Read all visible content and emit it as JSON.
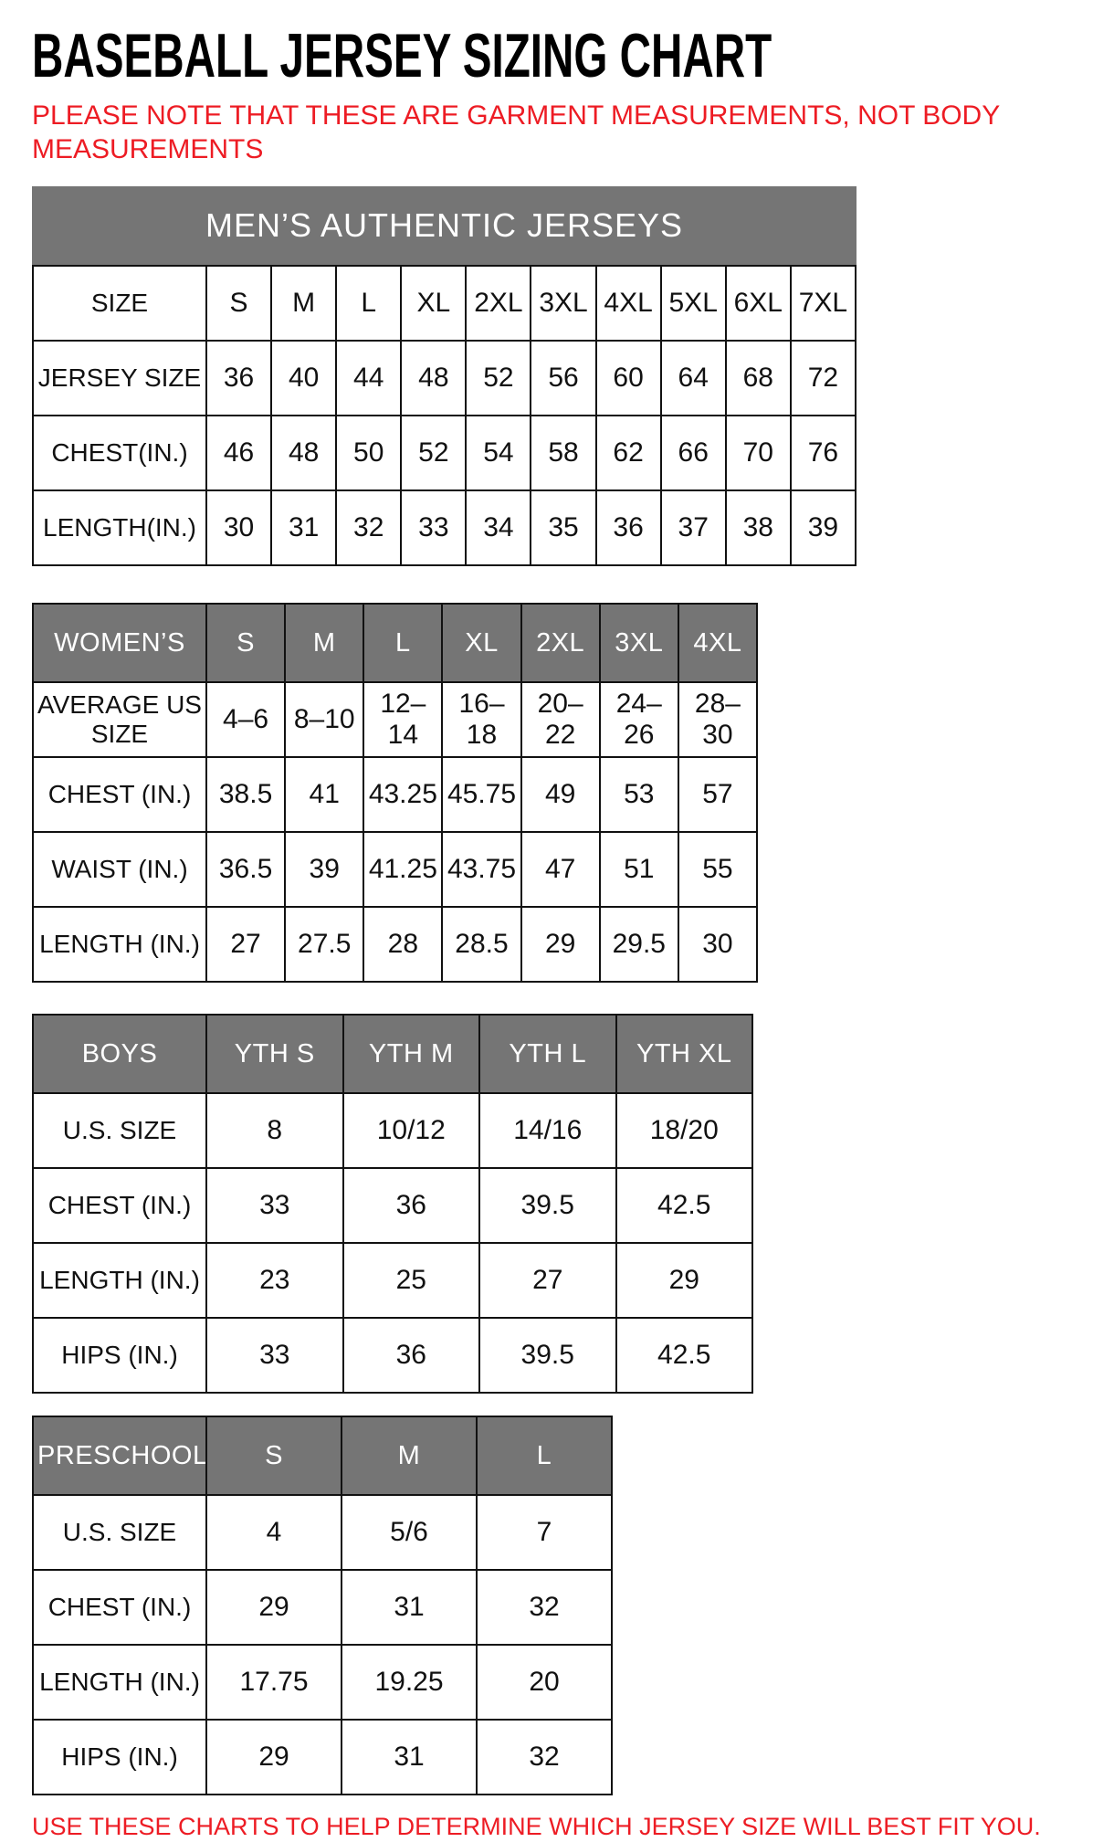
{
  "page": {
    "title": "BASEBALL JERSEY SIZING CHART",
    "note": "PLEASE NOTE THAT THESE ARE GARMENT MEASUREMENTS, NOT BODY MEASUREMENTS",
    "footer": "USE THESE CHARTS TO HELP DETERMINE WHICH JERSEY SIZE WILL BEST FIT YOU.",
    "colors": {
      "accent_red": "#ed1c24",
      "header_gray": "#757575",
      "border_black": "#111111"
    }
  },
  "tables": [
    {
      "id": "mens",
      "banner": "MEN’S AUTHENTIC JERSEYS",
      "rows": [
        {
          "label": "SIZE",
          "values": [
            "S",
            "M",
            "L",
            "XL",
            "2XL",
            "3XL",
            "4XL",
            "5XL",
            "6XL",
            "7XL"
          ]
        },
        {
          "label": "JERSEY SIZE",
          "values": [
            "36",
            "40",
            "44",
            "48",
            "52",
            "56",
            "60",
            "64",
            "68",
            "72"
          ]
        },
        {
          "label": "CHEST(IN.)",
          "values": [
            "46",
            "48",
            "50",
            "52",
            "54",
            "58",
            "62",
            "66",
            "70",
            "76"
          ]
        },
        {
          "label": "LENGTH(IN.)",
          "values": [
            "30",
            "31",
            "32",
            "33",
            "34",
            "35",
            "36",
            "37",
            "38",
            "39"
          ]
        }
      ]
    },
    {
      "id": "womens",
      "header": {
        "label": "WOMEN’S",
        "values": [
          "S",
          "M",
          "L",
          "XL",
          "2XL",
          "3XL",
          "4XL"
        ]
      },
      "rows": [
        {
          "label": "AVERAGE US SIZE",
          "values": [
            "4–6",
            "8–10",
            "12–14",
            "16–18",
            "20–22",
            "24–26",
            "28–30"
          ]
        },
        {
          "label": "CHEST (IN.)",
          "values": [
            "38.5",
            "41",
            "43.25",
            "45.75",
            "49",
            "53",
            "57"
          ]
        },
        {
          "label": "WAIST (IN.)",
          "values": [
            "36.5",
            "39",
            "41.25",
            "43.75",
            "47",
            "51",
            "55"
          ]
        },
        {
          "label": "LENGTH (IN.)",
          "values": [
            "27",
            "27.5",
            "28",
            "28.5",
            "29",
            "29.5",
            "30"
          ]
        }
      ]
    },
    {
      "id": "boys",
      "header": {
        "label": "BOYS",
        "values": [
          "YTH S",
          "YTH M",
          "YTH L",
          "YTH XL"
        ]
      },
      "rows": [
        {
          "label": "U.S. SIZE",
          "values": [
            "8",
            "10/12",
            "14/16",
            "18/20"
          ]
        },
        {
          "label": "CHEST (IN.)",
          "values": [
            "33",
            "36",
            "39.5",
            "42.5"
          ]
        },
        {
          "label": "LENGTH (IN.)",
          "values": [
            "23",
            "25",
            "27",
            "29"
          ]
        },
        {
          "label": "HIPS (IN.)",
          "values": [
            "33",
            "36",
            "39.5",
            "42.5"
          ]
        }
      ]
    },
    {
      "id": "preschool",
      "header": {
        "label": "PRESCHOOL",
        "values": [
          "S",
          "M",
          "L"
        ]
      },
      "rows": [
        {
          "label": "U.S. SIZE",
          "values": [
            "4",
            "5/6",
            "7"
          ]
        },
        {
          "label": "CHEST (IN.)",
          "values": [
            "29",
            "31",
            "32"
          ]
        },
        {
          "label": "LENGTH (IN.)",
          "values": [
            "17.75",
            "19.25",
            "20"
          ]
        },
        {
          "label": "HIPS (IN.)",
          "values": [
            "29",
            "31",
            "32"
          ]
        }
      ]
    }
  ]
}
